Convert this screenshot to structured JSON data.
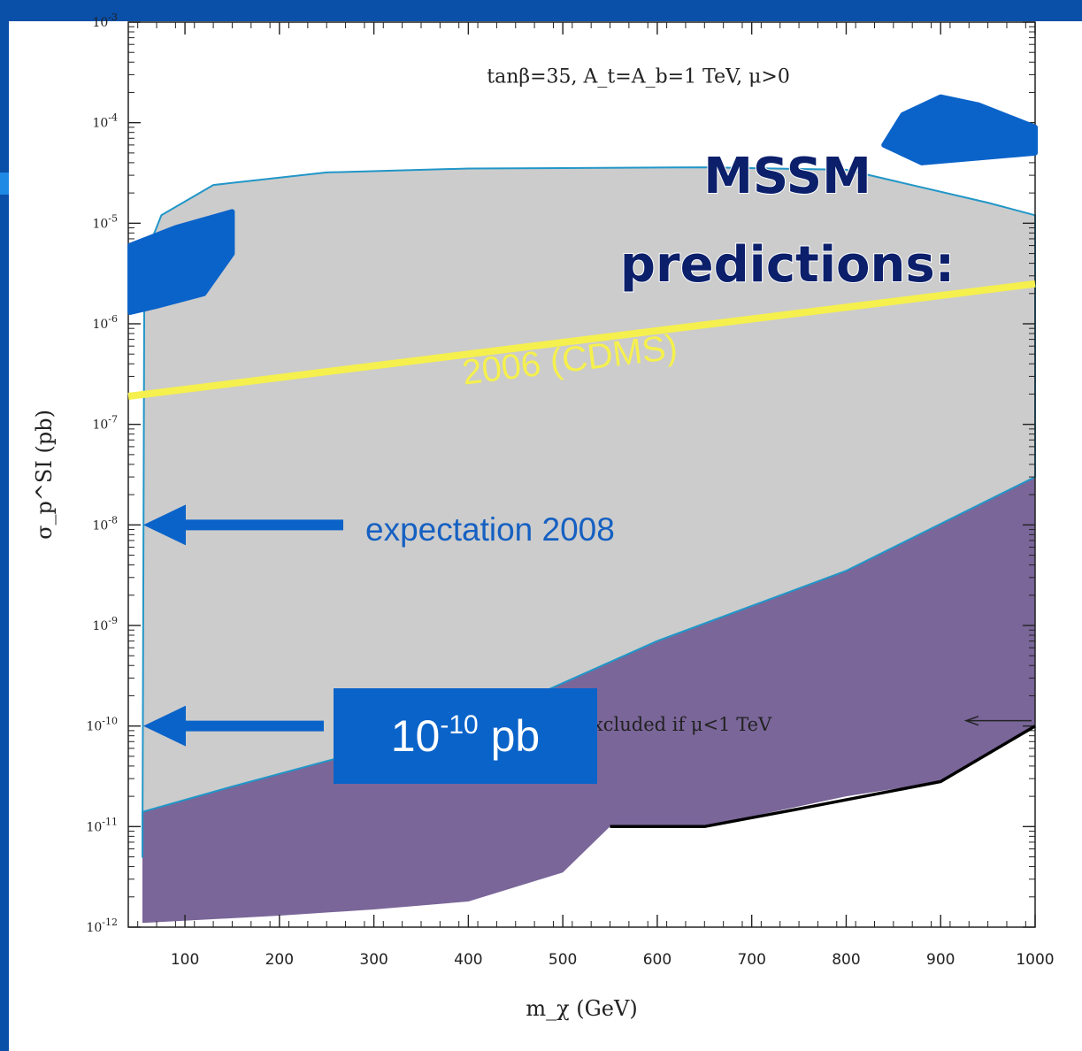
{
  "chart_data": {
    "type": "area",
    "title": "",
    "xlabel": "m_χ (GeV)",
    "ylabel": "σ_p^SI (pb)",
    "xlim": [
      40,
      1000
    ],
    "ylim": [
      1e-12,
      0.001
    ],
    "y_scale": "log",
    "x_ticks": [
      100,
      200,
      300,
      400,
      500,
      600,
      700,
      800,
      900,
      1000
    ],
    "y_ticks": [
      {
        "value": 0.001,
        "mant": "10",
        "exp": "-3"
      },
      {
        "value": 0.0001,
        "mant": "10",
        "exp": "-4"
      },
      {
        "value": 1e-05,
        "mant": "10",
        "exp": "-5"
      },
      {
        "value": 1e-06,
        "mant": "10",
        "exp": "-6"
      },
      {
        "value": 1e-07,
        "mant": "10",
        "exp": "-7"
      },
      {
        "value": 1e-08,
        "mant": "10",
        "exp": "-8"
      },
      {
        "value": 1e-09,
        "mant": "10",
        "exp": "-9"
      },
      {
        "value": 1e-10,
        "mant": "10",
        "exp": "-10"
      },
      {
        "value": 1e-11,
        "mant": "10",
        "exp": "-11"
      },
      {
        "value": 1e-12,
        "mant": "10",
        "exp": "-12"
      }
    ],
    "annotation": "tanβ=35,  A_t=A_b=1 TeV,  μ>0",
    "excluded_annotation": "excluded if μ<1 TeV",
    "series": [
      {
        "name": "MSSM predictions",
        "color": "#cccccc",
        "outline_color": "#2196c8",
        "points": [
          [
            55,
            5e-12
          ],
          [
            57,
            4.5e-06
          ],
          [
            75,
            1.2e-05
          ],
          [
            130,
            2.4e-05
          ],
          [
            250,
            3.2e-05
          ],
          [
            400,
            3.5e-05
          ],
          [
            650,
            3.6e-05
          ],
          [
            800,
            3.4e-05
          ],
          [
            950,
            1.6e-05
          ],
          [
            1000,
            1.2e-05
          ],
          [
            1000,
            3e-08
          ],
          [
            800,
            3.5e-09
          ],
          [
            600,
            7e-10
          ],
          [
            470,
            2e-10
          ],
          [
            300,
            6e-11
          ],
          [
            150,
            2.5e-11
          ],
          [
            55,
            1.4e-11
          ]
        ]
      },
      {
        "name": "",
        "color": "#7a6699",
        "points": [
          [
            55,
            1.4e-11
          ],
          [
            150,
            2.5e-11
          ],
          [
            300,
            6e-11
          ],
          [
            470,
            2e-10
          ],
          [
            600,
            7e-10
          ],
          [
            800,
            3.5e-09
          ],
          [
            1000,
            3e-08
          ],
          [
            1000,
            1e-10
          ],
          [
            900,
            2.8e-11
          ],
          [
            800,
            2e-11
          ],
          [
            650,
            1e-11
          ],
          [
            550,
            1e-11
          ],
          [
            500,
            3.5e-12
          ],
          [
            400,
            1.8e-12
          ],
          [
            300,
            1.5e-12
          ],
          [
            200,
            1.3e-12
          ],
          [
            55,
            1.1e-12
          ]
        ]
      },
      {
        "name": "2006 (CDMS)",
        "color": "#f5f04d",
        "points": [
          [
            40,
            1.9e-07
          ],
          [
            1000,
            2.5e-06
          ]
        ]
      },
      {
        "name": "",
        "color": "#000000",
        "points": [
          [
            550,
            1e-11
          ],
          [
            650,
            1e-11
          ],
          [
            750,
            1.5e-11
          ],
          [
            900,
            2.8e-11
          ],
          [
            1000,
            1e-10
          ]
        ]
      }
    ],
    "overlays": {
      "title": "MSSM\npredictions:",
      "cdms_label": "2006 (CDMS)",
      "expectation_label": "expectation 2008",
      "expectation_value": 1e-08,
      "pb_box": {
        "mant": "10",
        "exp": "-10",
        "unit": " pb",
        "value": 1e-10
      }
    },
    "colors": {
      "accent_blue": "#0a63c9",
      "slide_blue": "#0a4fa8"
    }
  }
}
